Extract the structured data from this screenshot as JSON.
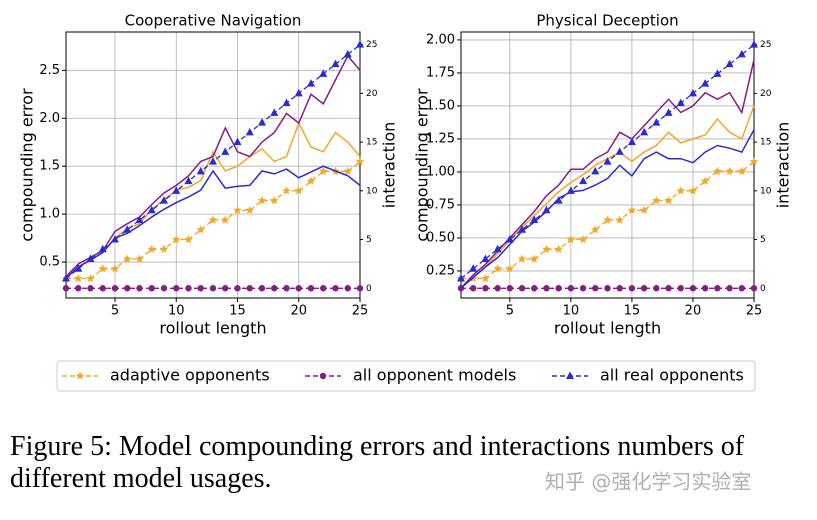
{
  "chart_data": [
    {
      "type": "line",
      "title": "Cooperative Navigation",
      "xlabel": "rollout length",
      "ylabel": "compounding error",
      "y2label": "interaction",
      "x": [
        1,
        2,
        3,
        4,
        5,
        6,
        7,
        8,
        9,
        10,
        11,
        12,
        13,
        14,
        15,
        16,
        17,
        18,
        19,
        20,
        21,
        22,
        23,
        24,
        25
      ],
      "xlim": [
        1,
        25
      ],
      "xticks": [
        5,
        10,
        15,
        20,
        25
      ],
      "ylim": [
        0.125,
        2.9
      ],
      "yticks": [
        0.5,
        {
          "value": 1,
          "label": "1.0"
        },
        1.5,
        {
          "value": 2,
          "label": "2.0"
        },
        2.5
      ],
      "y2lim": [
        -1,
        26.3
      ],
      "y2ticks": [
        0,
        5,
        10,
        15,
        20,
        25
      ],
      "grid": true,
      "series": [
        {
          "name": "adaptive opponents",
          "color": "#f5a623",
          "marker": "star",
          "values": [
            0.35,
            0.45,
            0.52,
            0.6,
            0.75,
            0.85,
            0.9,
            1.05,
            1.15,
            1.25,
            1.28,
            1.35,
            1.65,
            1.45,
            1.5,
            1.6,
            1.68,
            1.55,
            1.6,
            1.95,
            1.7,
            1.65,
            1.85,
            1.75,
            1.6
          ],
          "interactions": [
            1,
            1,
            1,
            2,
            2,
            3,
            3,
            4,
            4,
            5,
            5,
            6,
            7,
            7,
            8,
            8,
            9,
            9,
            10,
            10,
            11,
            12,
            12,
            12,
            13
          ]
        },
        {
          "name": "all opponent models",
          "color": "#8b1a89",
          "marker": "circle",
          "values": [
            0.35,
            0.48,
            0.55,
            0.62,
            0.82,
            0.9,
            0.97,
            1.1,
            1.22,
            1.3,
            1.4,
            1.55,
            1.6,
            1.9,
            1.65,
            1.6,
            1.75,
            1.85,
            2.05,
            1.95,
            2.25,
            2.15,
            2.4,
            2.65,
            2.5
          ],
          "interactions": [
            0,
            0,
            0,
            0,
            0,
            0,
            0,
            0,
            0,
            0,
            0,
            0,
            0,
            0,
            0,
            0,
            0,
            0,
            0,
            0,
            0,
            0,
            0,
            0,
            0
          ]
        },
        {
          "name": "all real opponents",
          "color": "#2b2bd4",
          "marker": "triangle",
          "values": [
            0.33,
            0.45,
            0.52,
            0.6,
            0.75,
            0.8,
            0.88,
            0.97,
            1.05,
            1.12,
            1.18,
            1.25,
            1.45,
            1.27,
            1.29,
            1.3,
            1.45,
            1.42,
            1.47,
            1.38,
            1.44,
            1.5,
            1.45,
            1.4,
            1.3
          ],
          "interactions": [
            1,
            2,
            3,
            4,
            5,
            6,
            7,
            8,
            9,
            10,
            11,
            12,
            13,
            14,
            15,
            16,
            17,
            18,
            19,
            20,
            21,
            22,
            23,
            24,
            25
          ]
        }
      ]
    },
    {
      "type": "line",
      "title": "Physical Deception",
      "xlabel": "rollout length",
      "ylabel": "compounding error",
      "y2label": "interaction",
      "x": [
        1,
        2,
        3,
        4,
        5,
        6,
        7,
        8,
        9,
        10,
        11,
        12,
        13,
        14,
        15,
        16,
        17,
        18,
        19,
        20,
        21,
        22,
        23,
        24,
        25
      ],
      "xlim": [
        1,
        25
      ],
      "xticks": [
        5,
        10,
        15,
        20,
        25
      ],
      "ylim": [
        0.045,
        2.06
      ],
      "yticks": [
        0.25,
        {
          "value": 0.5,
          "label": "0.50"
        },
        0.75,
        {
          "value": 1,
          "label": "1.00"
        },
        1.25,
        {
          "value": 1.5,
          "label": "1.50"
        },
        1.75,
        {
          "value": 2,
          "label": "2.00"
        }
      ],
      "y2lim": [
        -1,
        26.3
      ],
      "y2ticks": [
        0,
        5,
        10,
        15,
        20,
        25
      ],
      "grid": true,
      "series": [
        {
          "color": "#f5a623",
          "marker": "star",
          "values": [
            0.12,
            0.2,
            0.28,
            0.38,
            0.48,
            0.58,
            0.67,
            0.76,
            0.85,
            0.92,
            0.98,
            1.05,
            1.1,
            1.15,
            1.08,
            1.15,
            1.2,
            1.3,
            1.22,
            1.25,
            1.28,
            1.4,
            1.3,
            1.25,
            1.5
          ],
          "interactions": [
            1,
            1,
            1,
            2,
            2,
            3,
            3,
            4,
            4,
            5,
            5,
            6,
            7,
            7,
            8,
            8,
            9,
            9,
            10,
            10,
            11,
            12,
            12,
            12,
            13
          ]
        },
        {
          "color": "#8b1a89",
          "marker": "circle",
          "values": [
            0.12,
            0.22,
            0.3,
            0.4,
            0.5,
            0.6,
            0.7,
            0.82,
            0.9,
            1.02,
            1.02,
            1.1,
            1.15,
            1.3,
            1.25,
            1.35,
            1.45,
            1.55,
            1.45,
            1.5,
            1.6,
            1.55,
            1.6,
            1.45,
            1.85
          ],
          "interactions": [
            0,
            0,
            0,
            0,
            0,
            0,
            0,
            0,
            0,
            0,
            0,
            0,
            0,
            0,
            0,
            0,
            0,
            0,
            0,
            0,
            0,
            0,
            0,
            0,
            0
          ]
        },
        {
          "color": "#2b2bd4",
          "marker": "triangle",
          "values": [
            0.12,
            0.2,
            0.28,
            0.35,
            0.45,
            0.55,
            0.62,
            0.7,
            0.8,
            0.85,
            0.86,
            0.9,
            0.95,
            1.05,
            0.97,
            1.1,
            1.15,
            1.1,
            1.1,
            1.07,
            1.15,
            1.2,
            1.18,
            1.15,
            1.32
          ],
          "interactions": [
            1,
            2,
            3,
            4,
            5,
            6,
            7,
            8,
            9,
            10,
            11,
            12,
            13,
            14,
            15,
            16,
            17,
            18,
            19,
            20,
            21,
            22,
            23,
            24,
            25
          ]
        }
      ]
    }
  ],
  "caption": [
    "Figure 5: Model compounding errors and interactions numbers of",
    "different model usages."
  ],
  "watermark": "知乎 @强化学习实验室"
}
